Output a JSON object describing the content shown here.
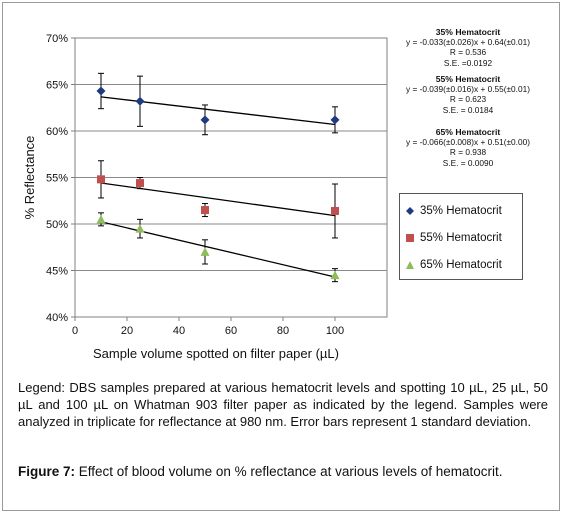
{
  "chart_data": {
    "type": "scatter",
    "xlabel": "Sample volume spotted on filter paper (µL)",
    "ylabel": "% Reflectance",
    "xlim": [
      0,
      120
    ],
    "ylim": [
      40,
      70
    ],
    "xticks": [
      0,
      20,
      40,
      60,
      80,
      100
    ],
    "yticks": [
      "40%",
      "45%",
      "50%",
      "55%",
      "60%",
      "65%",
      "70%"
    ],
    "grid": "horizontal",
    "legend_position": "right",
    "series": [
      {
        "name": "35% Hematocrit",
        "marker": "diamond",
        "color": "#1f3a80",
        "x": [
          10,
          25,
          50,
          100
        ],
        "y": [
          64.3,
          63.2,
          61.2,
          61.2
        ],
        "err": [
          1.9,
          2.7,
          1.6,
          1.4
        ],
        "fit": {
          "slope": -0.033,
          "intercept": 64.0
        },
        "equation": "y = -0.033(±0.026)x + 0.64(±0.01)",
        "r": "R = 0.536",
        "se": "S.E. =0.0192"
      },
      {
        "name": "55% Hematocrit",
        "marker": "square",
        "color": "#c0504d",
        "x": [
          10,
          25,
          50,
          100
        ],
        "y": [
          54.8,
          54.4,
          51.5,
          51.4
        ],
        "err": [
          2.0,
          0.6,
          0.7,
          2.9
        ],
        "fit": {
          "slope": -0.039,
          "intercept": 54.8
        },
        "equation": "y = -0.039(±0.016)x + 0.55(±0.01)",
        "r": "R = 0.623",
        "se": "S.E. = 0.0184"
      },
      {
        "name": "65% Hematocrit",
        "marker": "triangle",
        "color": "#8fbc5a",
        "x": [
          10,
          25,
          50,
          100
        ],
        "y": [
          50.5,
          49.5,
          47.0,
          44.5
        ],
        "err": [
          0.7,
          1.0,
          1.3,
          0.7
        ],
        "fit": {
          "slope": -0.066,
          "intercept": 50.9
        },
        "equation": "y = -0.066(±0.008)x + 0.51(±0.00)",
        "r": "R = 0.938",
        "se": "S.E. = 0.0090"
      }
    ]
  },
  "caption": {
    "legend_text": "Legend: DBS samples prepared at various hematocrit levels and spotting 10 µL, 25 µL, 50 µL and 100 µL on Whatman 903 filter paper as indicated by the legend.  Samples were analyzed in triplicate for reflectance at 980 nm. Error bars represent 1 standard deviation.",
    "figure_label": "Figure 7:",
    "figure_title": " Effect of blood volume on % reflectance at various levels of hematocrit."
  }
}
